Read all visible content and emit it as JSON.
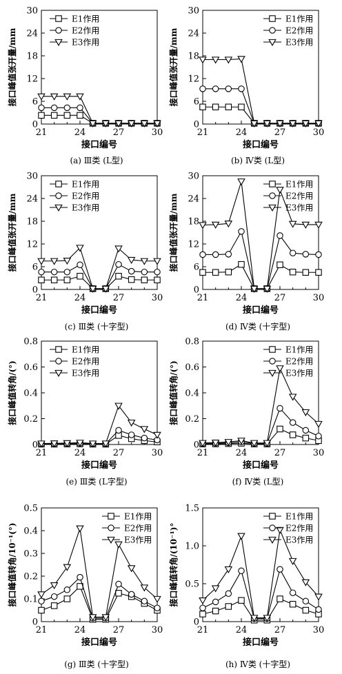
{
  "chart_data": [
    {
      "type": "line",
      "caption": "(a) Ⅲ类 (L型)",
      "xlabel": "接口编号",
      "ylabel": "接口峰值张开量/mm",
      "x": [
        21,
        22,
        23,
        24,
        25,
        26,
        27,
        28,
        29,
        30
      ],
      "xticks": [
        21,
        24,
        27,
        30
      ],
      "yticks": [
        0,
        6,
        12,
        18,
        24,
        30
      ],
      "yticklabels": [
        "0",
        "6",
        "12",
        "18",
        "24",
        "30"
      ],
      "ylim": [
        0,
        30
      ],
      "legend": "top-left",
      "grid": false,
      "series": [
        {
          "name": "E1作用",
          "marker": "square",
          "values": [
            2.3,
            2.3,
            2.3,
            2.3,
            0.2,
            0.2,
            0.2,
            0.2,
            0.2,
            0.2
          ]
        },
        {
          "name": "E2作用",
          "marker": "circle",
          "values": [
            4.3,
            4.3,
            4.3,
            4.3,
            0.2,
            0.2,
            0.2,
            0.2,
            0.2,
            0.2
          ]
        },
        {
          "name": "E3作用",
          "marker": "triangle",
          "values": [
            7.3,
            7.3,
            7.3,
            7.3,
            0.2,
            0.2,
            0.2,
            0.2,
            0.2,
            0.2
          ]
        }
      ]
    },
    {
      "type": "line",
      "caption": "(b) Ⅳ类 (L型)",
      "xlabel": "接口编号",
      "ylabel": "接口峰值张开量/mm",
      "x": [
        21,
        22,
        23,
        24,
        25,
        26,
        27,
        28,
        29,
        30
      ],
      "xticks": [
        21,
        24,
        27,
        30
      ],
      "yticks": [
        0,
        6,
        12,
        18,
        24,
        30
      ],
      "yticklabels": [
        "0",
        "6",
        "12",
        "18",
        "24",
        "30"
      ],
      "ylim": [
        0,
        30
      ],
      "legend": "top-right",
      "grid": false,
      "series": [
        {
          "name": "E1作用",
          "marker": "square",
          "values": [
            4.5,
            4.5,
            4.5,
            4.5,
            0.2,
            0.2,
            0.2,
            0.2,
            0.2,
            0.2
          ]
        },
        {
          "name": "E2作用",
          "marker": "circle",
          "values": [
            9.3,
            9.3,
            9.3,
            9.3,
            0.2,
            0.2,
            0.2,
            0.2,
            0.2,
            0.2
          ]
        },
        {
          "name": "E3作用",
          "marker": "triangle",
          "values": [
            17.0,
            17.0,
            17.0,
            17.2,
            0.2,
            0.2,
            0.2,
            0.2,
            0.2,
            0.2
          ]
        }
      ]
    },
    {
      "type": "line",
      "caption": "(c) Ⅲ类 (十字型)",
      "xlabel": "接口编号",
      "ylabel": "接口峰值张开量/mm",
      "x": [
        21,
        22,
        23,
        24,
        25,
        26,
        27,
        28,
        29,
        30
      ],
      "xticks": [
        21,
        24,
        27,
        30
      ],
      "yticks": [
        0,
        6,
        12,
        18,
        24,
        30
      ],
      "yticklabels": [
        "0",
        "6",
        "12",
        "18",
        "24",
        "30"
      ],
      "ylim": [
        0,
        30
      ],
      "legend": "top-left",
      "grid": false,
      "series": [
        {
          "name": "E1作用",
          "marker": "square",
          "values": [
            2.5,
            2.5,
            2.5,
            3.5,
            0.2,
            0.2,
            3.5,
            2.6,
            2.5,
            2.5
          ]
        },
        {
          "name": "E2作用",
          "marker": "circle",
          "values": [
            4.6,
            4.6,
            4.6,
            6.5,
            0.2,
            0.2,
            6.6,
            4.8,
            4.6,
            4.6
          ]
        },
        {
          "name": "E3作用",
          "marker": "triangle",
          "values": [
            7.5,
            7.5,
            7.6,
            11.0,
            0.2,
            0.2,
            10.8,
            7.8,
            7.5,
            7.5
          ]
        }
      ]
    },
    {
      "type": "line",
      "caption": "(d) Ⅳ类 (十字型)",
      "xlabel": "接口编号",
      "ylabel": "接口峰值张开量/mm",
      "x": [
        21,
        22,
        23,
        24,
        25,
        26,
        27,
        28,
        29,
        30
      ],
      "xticks": [
        21,
        24,
        27,
        30
      ],
      "yticks": [
        0,
        6,
        12,
        18,
        24,
        30
      ],
      "yticklabels": [
        "0",
        "6",
        "12",
        "18",
        "24",
        "30"
      ],
      "ylim": [
        0,
        30
      ],
      "legend": "top-right",
      "grid": false,
      "series": [
        {
          "name": "E1作用",
          "marker": "square",
          "values": [
            4.5,
            4.5,
            4.6,
            6.6,
            0.2,
            0.2,
            6.5,
            4.6,
            4.5,
            4.5
          ]
        },
        {
          "name": "E2作用",
          "marker": "circle",
          "values": [
            9.2,
            9.2,
            9.3,
            15.3,
            0.2,
            0.2,
            14.2,
            9.6,
            9.3,
            9.2
          ]
        },
        {
          "name": "E3作用",
          "marker": "triangle",
          "values": [
            17.0,
            17.1,
            17.4,
            28.5,
            0.2,
            0.2,
            26.3,
            17.3,
            17.1,
            17.1
          ]
        }
      ]
    },
    {
      "type": "line",
      "caption": "(e) Ⅲ类 (L字型)",
      "xlabel": "接口编号",
      "ylabel": "接口峰值转角/(°)",
      "x": [
        21,
        22,
        23,
        24,
        25,
        26,
        27,
        28,
        29,
        30
      ],
      "xticks": [
        21,
        24,
        27,
        30
      ],
      "yticks": [
        0,
        0.2,
        0.4,
        0.6,
        0.8
      ],
      "yticklabels": [
        "0",
        "0.2",
        "0.4",
        "0.6",
        "0.8"
      ],
      "ylim": [
        0,
        0.8
      ],
      "legend": "top-left",
      "grid": false,
      "series": [
        {
          "name": "E1作用",
          "marker": "square",
          "values": [
            0.003,
            0.003,
            0.004,
            0.005,
            0.003,
            0.003,
            0.07,
            0.045,
            0.03,
            0.02
          ]
        },
        {
          "name": "E2作用",
          "marker": "circle",
          "values": [
            0.005,
            0.006,
            0.007,
            0.009,
            0.005,
            0.005,
            0.11,
            0.075,
            0.05,
            0.035
          ]
        },
        {
          "name": "E3作用",
          "marker": "triangle",
          "values": [
            0.008,
            0.009,
            0.011,
            0.014,
            0.008,
            0.008,
            0.3,
            0.17,
            0.12,
            0.075
          ]
        }
      ]
    },
    {
      "type": "line",
      "caption": "(f) Ⅳ类 (L型)",
      "xlabel": "接口编号",
      "ylabel": "接口峰值转角/(°)",
      "x": [
        21,
        22,
        23,
        24,
        25,
        26,
        27,
        28,
        29,
        30
      ],
      "xticks": [
        21,
        24,
        27,
        30
      ],
      "yticks": [
        0,
        0.2,
        0.4,
        0.6,
        0.8
      ],
      "yticklabels": [
        "0",
        "0.2",
        "0.4",
        "0.6",
        "0.8"
      ],
      "ylim": [
        0,
        0.8
      ],
      "legend": "top-right",
      "grid": false,
      "series": [
        {
          "name": "E1作用",
          "marker": "square",
          "values": [
            0.004,
            0.005,
            0.007,
            0.01,
            0.004,
            0.004,
            0.12,
            0.075,
            0.05,
            0.03
          ]
        },
        {
          "name": "E2作用",
          "marker": "circle",
          "values": [
            0.008,
            0.01,
            0.013,
            0.02,
            0.008,
            0.008,
            0.28,
            0.17,
            0.11,
            0.065
          ]
        },
        {
          "name": "E3作用",
          "marker": "triangle",
          "values": [
            0.012,
            0.015,
            0.02,
            0.03,
            0.012,
            0.012,
            0.59,
            0.37,
            0.25,
            0.16
          ]
        }
      ]
    },
    {
      "type": "line",
      "caption": "(g) Ⅲ类 (十字型)",
      "xlabel": "接口编号",
      "ylabel": "接口峰值转角/10⁻¹(°)",
      "x": [
        21,
        22,
        23,
        24,
        25,
        26,
        27,
        28,
        29,
        30
      ],
      "xticks": [
        21,
        24,
        27,
        30
      ],
      "yticks": [
        0,
        0.1,
        0.2,
        0.3,
        0.4,
        0.5
      ],
      "yticklabels": [
        "0",
        "0.1",
        "0.2",
        "0.3",
        "0.4",
        "0.5"
      ],
      "ylim": [
        0,
        0.5
      ],
      "legend": "top-right",
      "grid": false,
      "series": [
        {
          "name": "E1作用",
          "marker": "square",
          "values": [
            0.05,
            0.07,
            0.1,
            0.155,
            0.01,
            0.01,
            0.125,
            0.11,
            0.08,
            0.05
          ]
        },
        {
          "name": "E2作用",
          "marker": "circle",
          "values": [
            0.09,
            0.11,
            0.14,
            0.195,
            0.015,
            0.015,
            0.165,
            0.12,
            0.09,
            0.06
          ]
        },
        {
          "name": "E3作用",
          "marker": "triangle",
          "values": [
            0.12,
            0.16,
            0.24,
            0.41,
            0.02,
            0.02,
            0.34,
            0.235,
            0.15,
            0.1
          ]
        }
      ]
    },
    {
      "type": "line",
      "caption": "(h) Ⅳ类 (十字型)",
      "xlabel": "接口编号",
      "ylabel": "接口峰值转角/(10⁻¹)°",
      "x": [
        21,
        22,
        23,
        24,
        25,
        26,
        27,
        28,
        29,
        30
      ],
      "xticks": [
        21,
        24,
        27,
        30
      ],
      "yticks": [
        0,
        0.5,
        1.0,
        1.5
      ],
      "yticklabels": [
        "0",
        "0.5",
        "1.0",
        "1.5"
      ],
      "ylim": [
        0,
        1.5
      ],
      "legend": "top-right",
      "grid": false,
      "series": [
        {
          "name": "E1作用",
          "marker": "square",
          "values": [
            0.1,
            0.14,
            0.2,
            0.28,
            0.02,
            0.02,
            0.3,
            0.23,
            0.15,
            0.1
          ]
        },
        {
          "name": "E2作用",
          "marker": "circle",
          "values": [
            0.18,
            0.26,
            0.37,
            0.67,
            0.04,
            0.04,
            0.69,
            0.38,
            0.27,
            0.16
          ]
        },
        {
          "name": "E3作用",
          "marker": "triangle",
          "values": [
            0.28,
            0.44,
            0.69,
            1.13,
            0.05,
            0.05,
            1.21,
            0.8,
            0.52,
            0.33
          ]
        }
      ]
    }
  ]
}
